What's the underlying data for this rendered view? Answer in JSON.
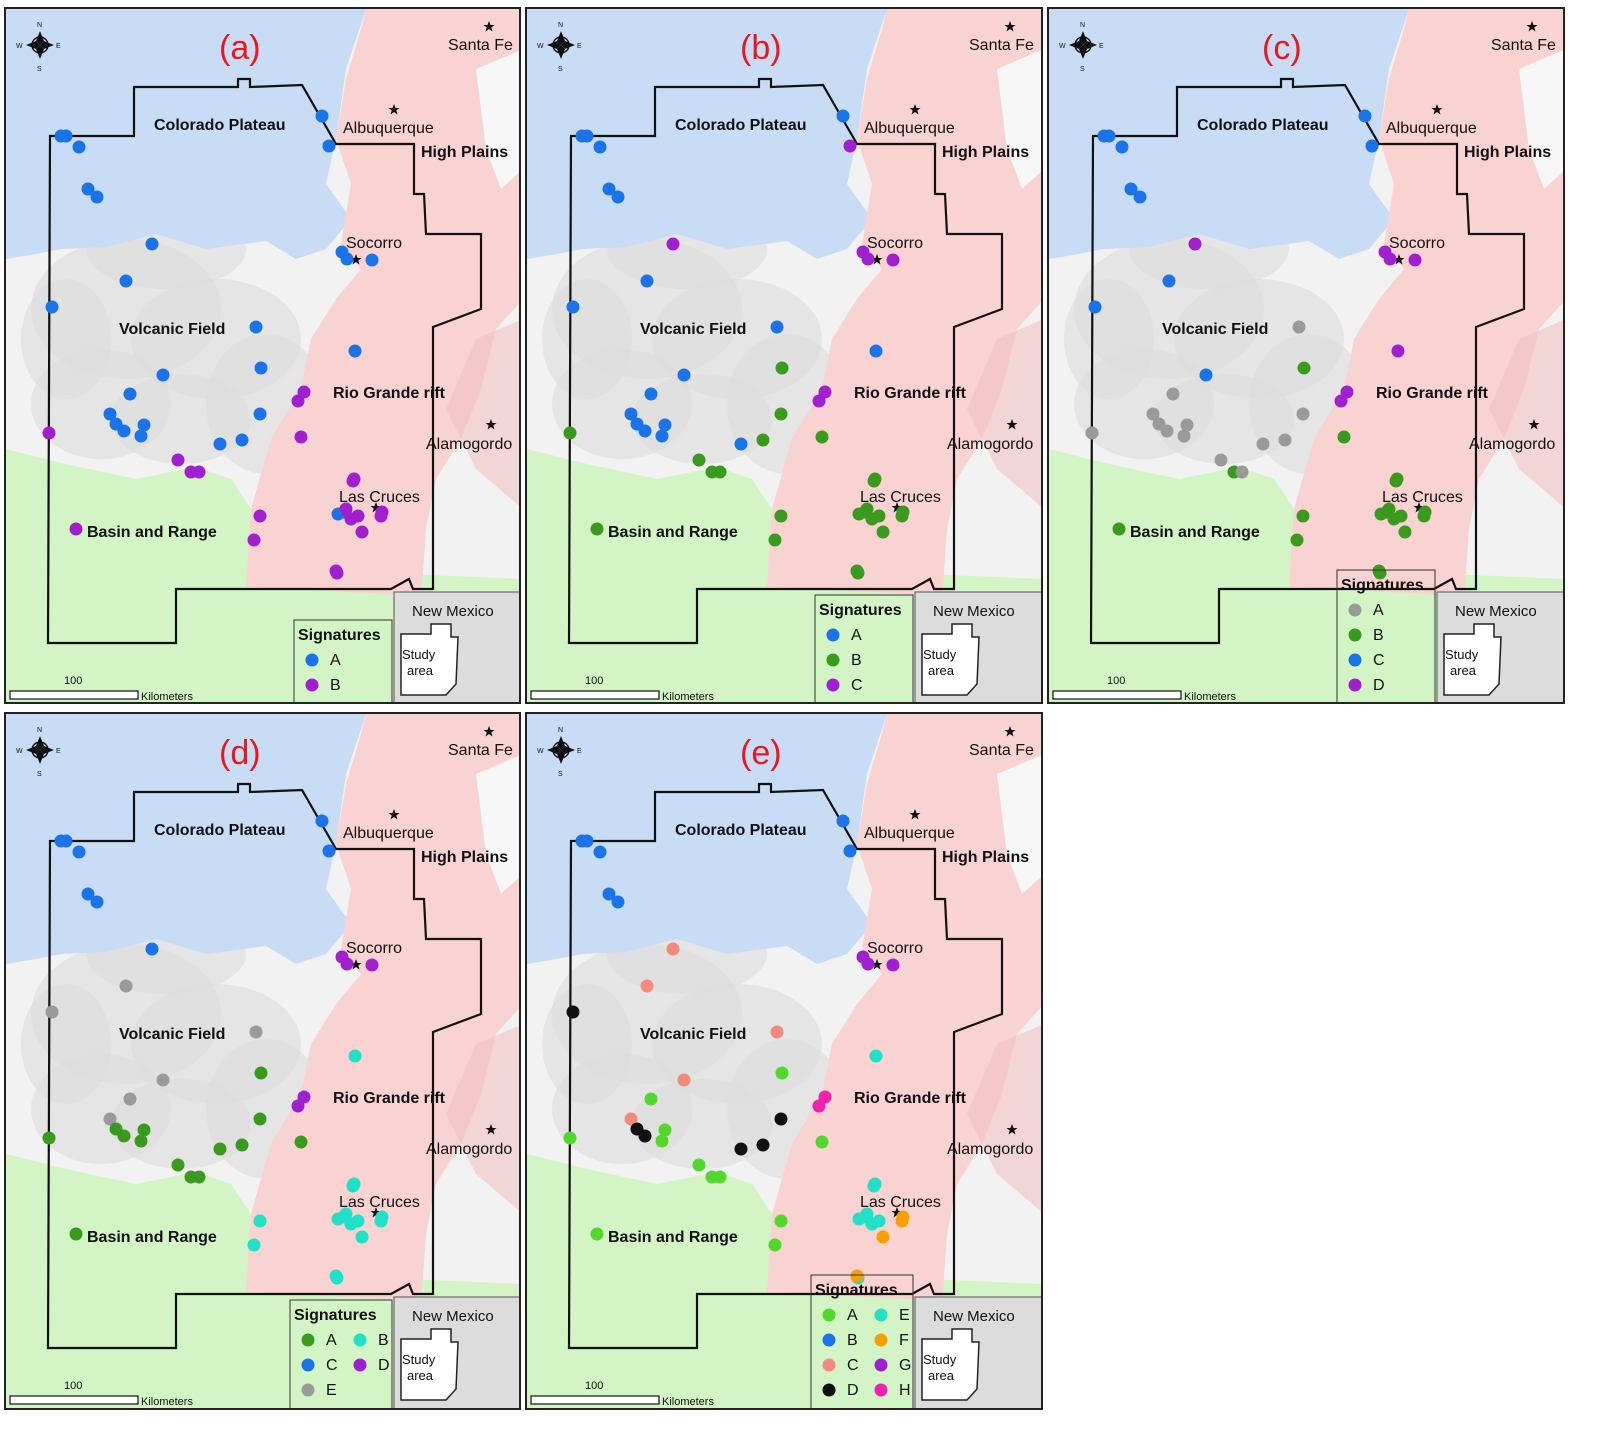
{
  "colors": {
    "colorado_plateau": "#c9dcf5",
    "rio_grande_rift": "#f9d2d2",
    "basin_and_range": "#d3f5c6",
    "volcanic_field": "#f2f2f2",
    "boundary": "#111111",
    "panel_label": "#e8191e"
  },
  "map_labels": {
    "compass": {
      "n": "N",
      "s": "S",
      "e": "E",
      "w": "W"
    },
    "regions": {
      "colorado_plateau": "Colorado Plateau",
      "high_plains": "High Plains",
      "volcanic_field": "Volcanic Field",
      "rio_grande_rift": "Rio Grande rift",
      "basin_and_range": "Basin and Range"
    },
    "cities": {
      "santa_fe": "Santa Fe",
      "albuquerque": "Albuquerque",
      "socorro": "Socorro",
      "alamogordo": "Alamogordo",
      "las_cruces": "Las Cruces"
    },
    "inset": {
      "title": "New Mexico",
      "study_area": "Study area"
    },
    "scale": {
      "value": "100",
      "unit": "Kilometers"
    },
    "legend_title": "Signatures"
  },
  "signature_colors": {
    "blue": "#1a73e8",
    "purple": "#a020d0",
    "green": "#3a9a1e",
    "gray": "#9a9a9a",
    "cyan": "#20e0c8",
    "salmon": "#f28a7e",
    "black": "#111111",
    "orange": "#f5a000",
    "magenta": "#f020b0",
    "lime": "#52d82a"
  },
  "panels": [
    {
      "label": "(a)",
      "legend": [
        {
          "sig": "A",
          "color": "blue"
        },
        {
          "sig": "B",
          "color": "purple"
        }
      ],
      "legend_cols": 1,
      "site_colors": [
        "blue",
        "blue",
        "blue",
        "blue",
        "blue",
        "blue",
        "blue",
        "blue",
        "blue",
        "blue",
        "blue",
        "blue",
        "blue",
        "blue",
        "blue",
        "blue",
        "blue",
        "blue",
        "blue",
        "blue",
        "blue",
        "blue",
        "blue",
        "blue",
        "blue",
        "blue",
        "purple",
        "purple",
        "purple",
        "purple",
        "purple",
        "purple",
        "purple",
        "purple",
        "purple",
        "purple",
        "purple",
        "purple",
        "purple",
        "blue",
        "purple",
        "purple",
        "purple",
        "purple",
        "purple",
        "purple",
        "purple",
        "purple"
      ]
    },
    {
      "label": "(b)",
      "legend": [
        {
          "sig": "A",
          "color": "blue"
        },
        {
          "sig": "B",
          "color": "green"
        },
        {
          "sig": "C",
          "color": "purple"
        }
      ],
      "legend_cols": 1,
      "site_colors": [
        "blue",
        "blue",
        "blue",
        "blue",
        "blue",
        "blue",
        "purple",
        "purple",
        "purple",
        "purple",
        "purple",
        "blue",
        "blue",
        "blue",
        "green",
        "blue",
        "blue",
        "blue",
        "blue",
        "blue",
        "blue",
        "blue",
        "blue",
        "blue",
        "green",
        "green",
        "purple",
        "purple",
        "green",
        "green",
        "green",
        "green",
        "green",
        "green",
        "green",
        "green",
        "green",
        "green",
        "green",
        "green",
        "green",
        "green",
        "green",
        "green",
        "green",
        "green",
        "green",
        "green"
      ]
    },
    {
      "label": "(c)",
      "legend": [
        {
          "sig": "A",
          "color": "gray"
        },
        {
          "sig": "B",
          "color": "green"
        },
        {
          "sig": "C",
          "color": "blue"
        },
        {
          "sig": "D",
          "color": "purple"
        }
      ],
      "legend_cols": 1,
      "site_colors": [
        "blue",
        "blue",
        "blue",
        "blue",
        "blue",
        "blue",
        "blue",
        "purple",
        "purple",
        "purple",
        "purple",
        "blue",
        "blue",
        "gray",
        "green",
        "blue",
        "purple",
        "gray",
        "gray",
        "gray",
        "gray",
        "gray",
        "gray",
        "gray",
        "gray",
        "gray",
        "purple",
        "purple",
        "gray",
        "green",
        "gray",
        "gray",
        "green",
        "green",
        "green",
        "green",
        "green",
        "green",
        "green",
        "green",
        "green",
        "green",
        "green",
        "green",
        "green",
        "green",
        "green",
        "green"
      ]
    },
    {
      "label": "(d)",
      "legend": [
        {
          "sig": "A",
          "color": "green"
        },
        {
          "sig": "B",
          "color": "cyan"
        },
        {
          "sig": "C",
          "color": "blue"
        },
        {
          "sig": "D",
          "color": "purple"
        },
        {
          "sig": "E",
          "color": "gray"
        }
      ],
      "legend_cols": 2,
      "site_colors": [
        "blue",
        "blue",
        "blue",
        "blue",
        "blue",
        "blue",
        "blue",
        "purple",
        "purple",
        "purple",
        "blue",
        "gray",
        "gray",
        "gray",
        "green",
        "gray",
        "cyan",
        "gray",
        "gray",
        "green",
        "green",
        "green",
        "green",
        "green",
        "green",
        "green",
        "purple",
        "purple",
        "green",
        "green",
        "green",
        "green",
        "green",
        "green",
        "cyan",
        "cyan",
        "cyan",
        "cyan",
        "cyan",
        "cyan",
        "cyan",
        "cyan",
        "cyan",
        "cyan",
        "cyan",
        "cyan",
        "cyan",
        "cyan"
      ]
    },
    {
      "label": "(e)",
      "legend": [
        {
          "sig": "A",
          "color": "lime"
        },
        {
          "sig": "E",
          "color": "cyan"
        },
        {
          "sig": "B",
          "color": "blue"
        },
        {
          "sig": "F",
          "color": "orange"
        },
        {
          "sig": "C",
          "color": "salmon"
        },
        {
          "sig": "G",
          "color": "purple"
        },
        {
          "sig": "D",
          "color": "black"
        },
        {
          "sig": "H",
          "color": "magenta"
        }
      ],
      "legend_cols": 2,
      "site_colors": [
        "blue",
        "blue",
        "blue",
        "blue",
        "blue",
        "blue",
        "blue",
        "purple",
        "purple",
        "purple",
        "salmon",
        "salmon",
        "black",
        "salmon",
        "lime",
        "salmon",
        "cyan",
        "lime",
        "salmon",
        "black",
        "black",
        "lime",
        "lime",
        "black",
        "black",
        "black",
        "magenta",
        "magenta",
        "lime",
        "lime",
        "lime",
        "lime",
        "lime",
        "lime",
        "lime",
        "lime",
        "cyan",
        "cyan",
        "cyan",
        "cyan",
        "orange",
        "orange",
        "cyan",
        "orange",
        "cyan",
        "cyan",
        "orange",
        "cyan"
      ]
    }
  ]
}
